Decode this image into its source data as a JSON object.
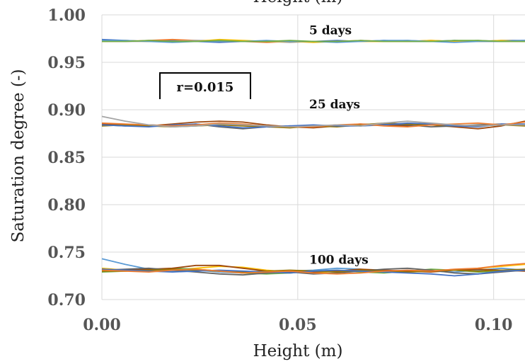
{
  "chart_data": {
    "type": "line",
    "xlabel": "Height (m)",
    "top_label": "Height (m)",
    "ylabel": "Saturation degree (-)",
    "xlim": [
      0,
      0.108
    ],
    "ylim": [
      0.7,
      1.0
    ],
    "x_ticks": [
      {
        "value": 0.0,
        "label": "0.00"
      },
      {
        "value": 0.05,
        "label": "0.05"
      },
      {
        "value": 0.1,
        "label": "0.10"
      }
    ],
    "y_ticks": [
      {
        "value": 0.7,
        "label": "0.70"
      },
      {
        "value": 0.75,
        "label": "0.75"
      },
      {
        "value": 0.8,
        "label": "0.80"
      },
      {
        "value": 0.85,
        "label": "0.85"
      },
      {
        "value": 0.9,
        "label": "0.90"
      },
      {
        "value": 0.95,
        "label": "0.95"
      },
      {
        "value": 1.0,
        "label": "1.00"
      }
    ],
    "grid": true,
    "annotations": [
      {
        "text": "5 days",
        "x": 0.054,
        "y": 0.984
      },
      {
        "text": "25 days",
        "x": 0.054,
        "y": 0.906
      },
      {
        "text": "100 days",
        "x": 0.054,
        "y": 0.742
      }
    ],
    "r_label": "r=0.015",
    "series_colors": [
      "#4472c4",
      "#ed7d31",
      "#a5a5a5",
      "#ffc000",
      "#5b9bd5",
      "#70ad47",
      "#9e480e",
      "#636363",
      "#997300"
    ],
    "x": [
      0.0,
      0.006,
      0.012,
      0.018,
      0.024,
      0.03,
      0.036,
      0.042,
      0.048,
      0.054,
      0.06,
      0.066,
      0.072,
      0.078,
      0.084,
      0.09,
      0.096,
      0.102,
      0.108
    ],
    "series": [
      {
        "group": "5 days",
        "values": [
          0.974,
          0.973,
          0.972,
          0.973,
          0.972,
          0.971,
          0.972,
          0.972,
          0.972,
          0.972,
          0.973,
          0.972,
          0.973,
          0.972,
          0.972,
          0.973,
          0.972,
          0.973,
          0.973
        ]
      },
      {
        "group": "5 days",
        "values": [
          0.972,
          0.972,
          0.973,
          0.974,
          0.973,
          0.972,
          0.972,
          0.971,
          0.972,
          0.972,
          0.972,
          0.973,
          0.972,
          0.972,
          0.973,
          0.972,
          0.972,
          0.972,
          0.972
        ]
      },
      {
        "group": "5 days",
        "values": [
          0.973,
          0.972,
          0.972,
          0.972,
          0.973,
          0.973,
          0.972,
          0.972,
          0.971,
          0.972,
          0.972,
          0.972,
          0.972,
          0.973,
          0.972,
          0.972,
          0.973,
          0.972,
          0.973
        ]
      },
      {
        "group": "5 days",
        "values": [
          0.972,
          0.973,
          0.972,
          0.972,
          0.972,
          0.974,
          0.973,
          0.972,
          0.972,
          0.971,
          0.972,
          0.972,
          0.972,
          0.972,
          0.973,
          0.972,
          0.972,
          0.973,
          0.972
        ]
      },
      {
        "group": "5 days",
        "values": [
          0.973,
          0.973,
          0.972,
          0.971,
          0.972,
          0.972,
          0.972,
          0.973,
          0.972,
          0.972,
          0.971,
          0.972,
          0.973,
          0.973,
          0.972,
          0.971,
          0.972,
          0.972,
          0.973
        ]
      },
      {
        "group": "5 days",
        "values": [
          0.972,
          0.972,
          0.973,
          0.972,
          0.972,
          0.973,
          0.972,
          0.972,
          0.973,
          0.972,
          0.972,
          0.973,
          0.972,
          0.972,
          0.972,
          0.973,
          0.973,
          0.972,
          0.972
        ]
      },
      {
        "group": "25 days",
        "values": [
          0.885,
          0.884,
          0.883,
          0.885,
          0.887,
          0.888,
          0.887,
          0.884,
          0.882,
          0.881,
          0.883,
          0.885,
          0.884,
          0.883,
          0.884,
          0.882,
          0.88,
          0.883,
          0.888
        ]
      },
      {
        "group": "25 days",
        "values": [
          0.884,
          0.883,
          0.884,
          0.883,
          0.885,
          0.882,
          0.88,
          0.882,
          0.883,
          0.882,
          0.884,
          0.883,
          0.885,
          0.884,
          0.882,
          0.883,
          0.884,
          0.885,
          0.884
        ]
      },
      {
        "group": "25 days",
        "values": [
          0.883,
          0.884,
          0.883,
          0.882,
          0.883,
          0.884,
          0.883,
          0.882,
          0.881,
          0.883,
          0.882,
          0.884,
          0.886,
          0.885,
          0.884,
          0.883,
          0.883,
          0.884,
          0.883
        ]
      },
      {
        "group": "25 days",
        "values": [
          0.884,
          0.883,
          0.882,
          0.884,
          0.885,
          0.883,
          0.881,
          0.882,
          0.883,
          0.884,
          0.883,
          0.883,
          0.884,
          0.886,
          0.885,
          0.883,
          0.882,
          0.885,
          0.885
        ]
      },
      {
        "group": "25 days",
        "values": [
          0.886,
          0.885,
          0.884,
          0.883,
          0.884,
          0.886,
          0.885,
          0.883,
          0.882,
          0.882,
          0.884,
          0.885,
          0.883,
          0.882,
          0.884,
          0.885,
          0.886,
          0.884,
          0.887
        ]
      },
      {
        "group": "25 days",
        "values": [
          0.893,
          0.888,
          0.884,
          0.882,
          0.883,
          0.885,
          0.884,
          0.883,
          0.882,
          0.883,
          0.884,
          0.883,
          0.886,
          0.888,
          0.886,
          0.884,
          0.883,
          0.884,
          0.884
        ]
      },
      {
        "group": "100 days",
        "values": [
          0.733,
          0.731,
          0.73,
          0.731,
          0.733,
          0.735,
          0.734,
          0.731,
          0.729,
          0.728,
          0.73,
          0.731,
          0.73,
          0.729,
          0.73,
          0.731,
          0.733,
          0.735,
          0.737
        ]
      },
      {
        "group": "100 days",
        "values": [
          0.743,
          0.737,
          0.732,
          0.73,
          0.731,
          0.729,
          0.728,
          0.729,
          0.73,
          0.731,
          0.733,
          0.732,
          0.73,
          0.731,
          0.73,
          0.729,
          0.731,
          0.733,
          0.731
        ]
      },
      {
        "group": "100 days",
        "values": [
          0.729,
          0.73,
          0.731,
          0.733,
          0.732,
          0.73,
          0.728,
          0.727,
          0.728,
          0.73,
          0.731,
          0.729,
          0.728,
          0.73,
          0.732,
          0.731,
          0.729,
          0.73,
          0.732
        ]
      },
      {
        "group": "100 days",
        "values": [
          0.732,
          0.731,
          0.732,
          0.733,
          0.736,
          0.736,
          0.733,
          0.73,
          0.729,
          0.729,
          0.73,
          0.732,
          0.731,
          0.73,
          0.729,
          0.731,
          0.732,
          0.731,
          0.73
        ]
      },
      {
        "group": "100 days",
        "values": [
          0.731,
          0.732,
          0.733,
          0.731,
          0.729,
          0.727,
          0.726,
          0.728,
          0.729,
          0.727,
          0.728,
          0.73,
          0.732,
          0.733,
          0.731,
          0.728,
          0.727,
          0.729,
          0.731
        ]
      },
      {
        "group": "100 days",
        "values": [
          0.73,
          0.73,
          0.731,
          0.732,
          0.731,
          0.73,
          0.729,
          0.73,
          0.731,
          0.73,
          0.729,
          0.731,
          0.73,
          0.729,
          0.73,
          0.731,
          0.73,
          0.731,
          0.732
        ]
      },
      {
        "group": "100 days",
        "values": [
          0.732,
          0.731,
          0.73,
          0.729,
          0.73,
          0.731,
          0.73,
          0.729,
          0.728,
          0.73,
          0.731,
          0.73,
          0.729,
          0.728,
          0.727,
          0.725,
          0.727,
          0.73,
          0.731
        ]
      },
      {
        "group": "100 days",
        "values": [
          0.731,
          0.73,
          0.729,
          0.731,
          0.732,
          0.73,
          0.728,
          0.729,
          0.73,
          0.728,
          0.727,
          0.728,
          0.73,
          0.731,
          0.73,
          0.732,
          0.733,
          0.736,
          0.738
        ]
      }
    ]
  }
}
